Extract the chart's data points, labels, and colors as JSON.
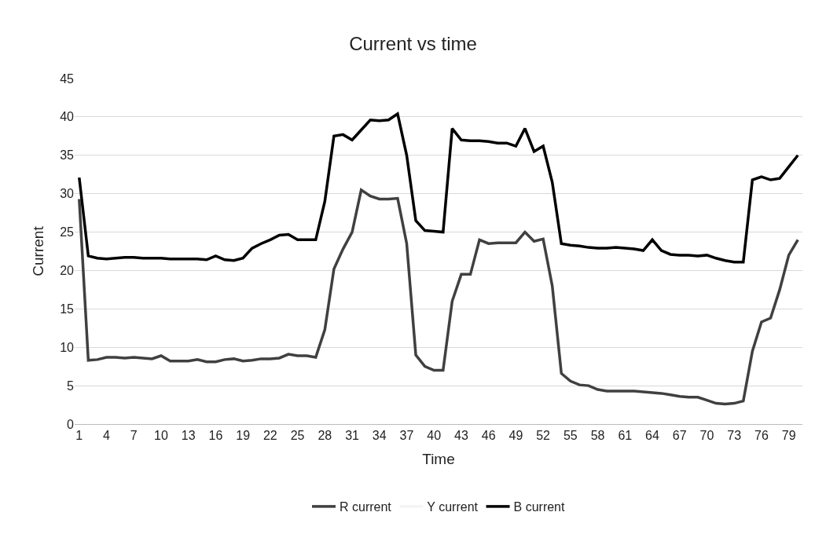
{
  "chart_data": {
    "type": "line",
    "title": "Current vs time",
    "xlabel": "Time",
    "ylabel": "Current",
    "categories": [
      "1",
      null,
      null,
      "4",
      null,
      null,
      "7",
      null,
      null,
      "10",
      null,
      null,
      "13",
      null,
      null,
      "16",
      null,
      null,
      "19",
      null,
      null,
      "22",
      null,
      null,
      "25",
      null,
      null,
      "28",
      null,
      null,
      "31",
      null,
      null,
      "34",
      null,
      null,
      "37",
      null,
      null,
      "40",
      null,
      null,
      "43",
      null,
      null,
      "46",
      null,
      null,
      "49",
      null,
      null,
      "52",
      null,
      null,
      "55",
      null,
      null,
      "58",
      null,
      null,
      "61",
      null,
      null,
      "64",
      null,
      null,
      "67",
      null,
      null,
      "70",
      null,
      null,
      "73",
      null,
      null,
      "76",
      null,
      null,
      "79",
      null
    ],
    "series": [
      {
        "name": "R current",
        "color": "#404040",
        "values": [
          29.3,
          8.3,
          8.4,
          8.7,
          8.7,
          8.6,
          8.7,
          8.6,
          8.5,
          8.9,
          8.2,
          8.2,
          8.2,
          8.4,
          8.1,
          8.1,
          8.4,
          8.5,
          8.2,
          8.3,
          8.5,
          8.5,
          8.6,
          9.1,
          8.9,
          8.9,
          8.7,
          12.3,
          20.2,
          22.8,
          25,
          30.5,
          29.7,
          29.3,
          29.3,
          29.4,
          23.5,
          9,
          7.5,
          7,
          7,
          16,
          19.5,
          19.5,
          24,
          23.5,
          23.6,
          23.6,
          23.6,
          25,
          23.8,
          24.1,
          18,
          6.6,
          5.6,
          5.1,
          5,
          4.5,
          4.3,
          4.3,
          4.3,
          4.3,
          4.2,
          4.1,
          4,
          3.8,
          3.6,
          3.5,
          3.5,
          3.1,
          2.7,
          2.6,
          2.7,
          3,
          9.5,
          13.3,
          13.8,
          17.5,
          22,
          24
        ]
      },
      {
        "name": "Y current",
        "color": "#f4f4f4",
        "values": [
          null,
          null,
          null,
          null,
          null,
          null,
          null,
          null,
          null,
          null,
          null,
          null,
          null,
          null,
          null,
          null,
          null,
          null,
          null,
          null,
          null,
          null,
          null,
          null,
          null,
          null,
          null,
          null,
          null,
          null,
          null,
          null,
          null,
          null,
          null,
          null,
          null,
          null,
          null,
          null,
          null,
          null,
          null,
          null,
          null,
          null,
          null,
          null,
          null,
          null,
          null,
          null,
          null,
          null,
          null,
          null,
          null,
          null,
          null,
          null,
          null,
          null,
          null,
          null,
          null,
          null,
          null,
          null,
          null,
          null,
          null,
          null,
          null,
          null,
          null,
          null,
          null,
          null,
          null,
          null
        ]
      },
      {
        "name": "B current",
        "color": "#000000",
        "values": [
          32.1,
          21.9,
          21.6,
          21.5,
          21.6,
          21.7,
          21.7,
          21.6,
          21.6,
          21.6,
          21.5,
          21.5,
          21.5,
          21.5,
          21.4,
          21.9,
          21.4,
          21.3,
          21.6,
          22.9,
          23.5,
          24,
          24.6,
          24.7,
          24,
          24,
          24,
          29,
          37.5,
          37.7,
          37,
          38.3,
          39.6,
          39.5,
          39.6,
          40.4,
          35,
          26.5,
          25.2,
          25.1,
          25,
          38.5,
          37,
          36.9,
          36.9,
          36.8,
          36.6,
          36.6,
          36.2,
          38.5,
          35.5,
          36.2,
          31.5,
          23.5,
          23.3,
          23.2,
          23,
          22.9,
          22.9,
          23,
          22.9,
          22.8,
          22.6,
          24,
          22.6,
          22.1,
          22,
          22,
          21.9,
          22,
          21.6,
          21.3,
          21.1,
          21.1,
          31.8,
          32.2,
          31.8,
          32,
          33.5,
          35
        ]
      }
    ],
    "ylim": [
      0,
      45
    ],
    "yticks": [
      0,
      5,
      10,
      15,
      20,
      25,
      30,
      35,
      40,
      45
    ],
    "grid": "y",
    "legend": "bottom",
    "marker": "none",
    "line_style": "solid"
  }
}
